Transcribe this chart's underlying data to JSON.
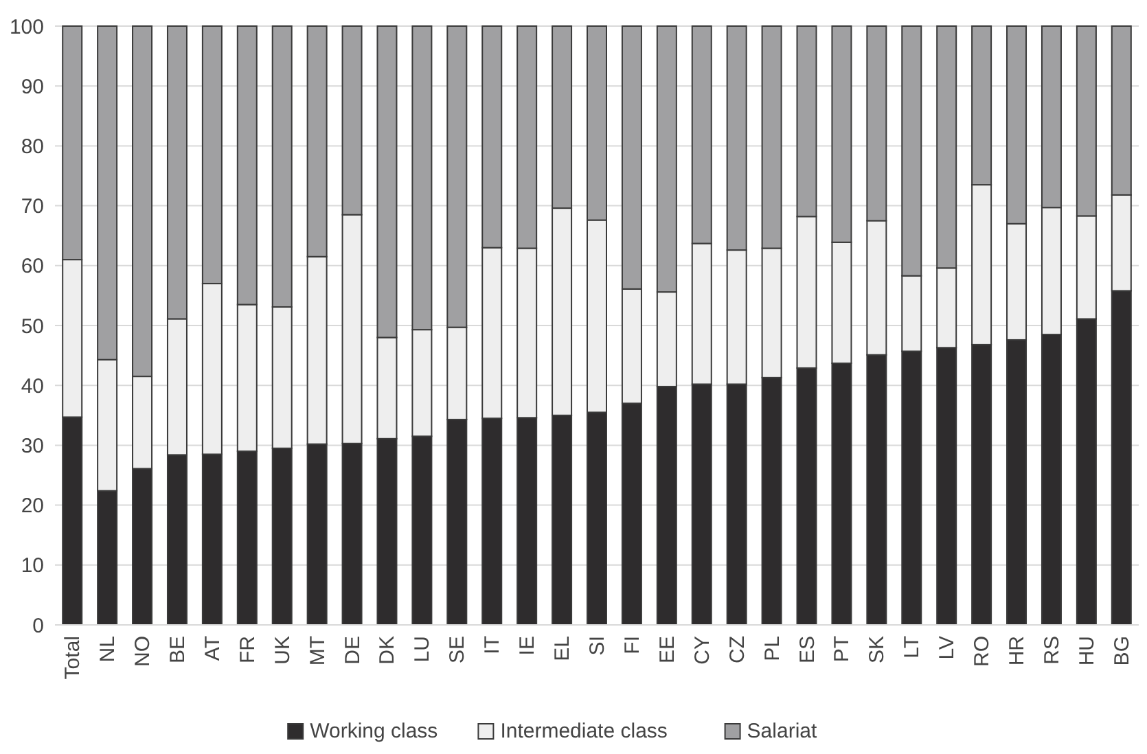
{
  "chart_data": {
    "type": "bar",
    "stacked": true,
    "categories": [
      "Total",
      "NL",
      "NO",
      "BE",
      "AT",
      "FR",
      "UK",
      "MT",
      "DE",
      "DK",
      "LU",
      "SE",
      "IT",
      "IE",
      "EL",
      "SI",
      "FI",
      "EE",
      "CY",
      "CZ",
      "PL",
      "ES",
      "PT",
      "SK",
      "LT",
      "LV",
      "RO",
      "HR",
      "RS",
      "HU",
      "BG"
    ],
    "series": [
      {
        "name": "Working class",
        "color": "#2e2c2d",
        "values": [
          34.7,
          22.4,
          26.1,
          28.4,
          28.5,
          29.0,
          29.5,
          30.2,
          30.3,
          31.1,
          31.5,
          34.3,
          34.5,
          34.6,
          35.0,
          35.5,
          37.0,
          39.8,
          40.2,
          40.2,
          41.3,
          42.9,
          43.7,
          45.1,
          45.7,
          46.3,
          46.8,
          47.6,
          48.5,
          51.1,
          55.8
        ]
      },
      {
        "name": "Intermediate class",
        "color": "#eeeeee",
        "values": [
          26.3,
          21.9,
          15.4,
          22.7,
          28.5,
          24.5,
          23.6,
          31.3,
          38.2,
          16.9,
          17.8,
          15.4,
          28.5,
          28.3,
          34.6,
          32.1,
          19.1,
          15.8,
          23.5,
          22.4,
          21.6,
          25.3,
          20.2,
          22.4,
          12.6,
          13.3,
          26.7,
          19.4,
          21.2,
          17.2,
          16.0
        ]
      },
      {
        "name": "Salariat",
        "color": "#a0a0a2",
        "values": [
          39.0,
          55.7,
          58.5,
          48.9,
          43.0,
          46.5,
          46.9,
          38.5,
          31.5,
          52.0,
          50.7,
          50.3,
          37.0,
          37.1,
          30.4,
          32.4,
          43.9,
          44.4,
          36.3,
          37.4,
          37.1,
          31.8,
          36.1,
          32.5,
          41.7,
          40.4,
          26.5,
          33.0,
          30.3,
          31.7,
          28.2
        ]
      }
    ],
    "ylim": [
      0,
      100
    ],
    "yticks": [
      0,
      10,
      20,
      30,
      40,
      50,
      60,
      70,
      80,
      90,
      100
    ],
    "grid": "y",
    "legend": "bottom"
  }
}
